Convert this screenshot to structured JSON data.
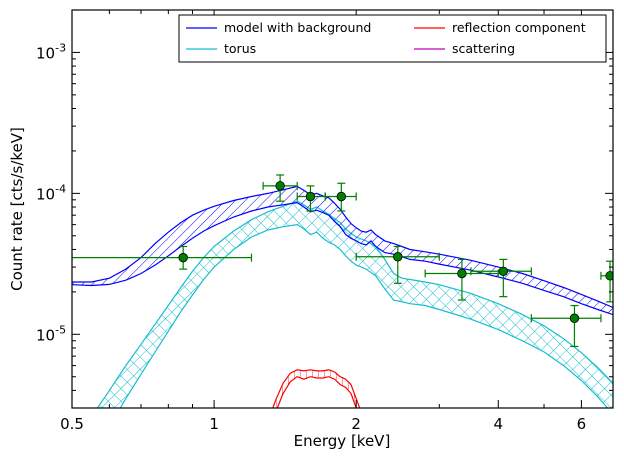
{
  "chart_data": {
    "type": "line",
    "xlabel": "Energy [keV]",
    "ylabel": "Count rate [cts/s/keV]",
    "xscale": "log",
    "yscale": "log",
    "xlim": [
      0.5,
      7.0
    ],
    "ylim": [
      3e-06,
      0.002
    ],
    "xticks": [
      {
        "value": 0.5,
        "label": "0.5"
      },
      {
        "value": 1,
        "label": "1"
      },
      {
        "value": 2,
        "label": "2"
      },
      {
        "value": 4,
        "label": "4"
      },
      {
        "value": 6,
        "label": "6"
      }
    ],
    "yticks": [
      {
        "value": 1e-05,
        "base": "10",
        "exp": "-5"
      },
      {
        "value": 0.0001,
        "base": "10",
        "exp": "-4"
      },
      {
        "value": 0.001,
        "base": "10",
        "exp": "-3"
      }
    ],
    "legend": {
      "position": "top-right",
      "columns": 2,
      "entries": [
        {
          "label": "model with background",
          "color": "#0000ff"
        },
        {
          "label": "reflection component",
          "color": "#ff0000"
        },
        {
          "label": "torus",
          "color": "#17becf"
        },
        {
          "label": "scattering",
          "color": "#bf00bf"
        }
      ]
    },
    "series": [
      {
        "name": "model with background",
        "color": "#0000ff",
        "style": "hatched-band",
        "x": [
          0.5,
          0.55,
          0.6,
          0.65,
          0.7,
          0.75,
          0.8,
          0.85,
          0.9,
          0.95,
          1.0,
          1.1,
          1.2,
          1.3,
          1.4,
          1.5,
          1.55,
          1.6,
          1.65,
          1.7,
          1.75,
          1.8,
          1.85,
          1.9,
          1.95,
          2.0,
          2.05,
          2.1,
          2.15,
          2.2,
          2.3,
          2.4,
          2.5,
          2.6,
          2.8,
          3.0,
          3.5,
          4.0,
          4.5,
          5.0,
          5.5,
          6.0,
          6.5,
          7.0
        ],
        "lower": [
          2.25e-05,
          2.22e-05,
          2.26e-05,
          2.42e-05,
          2.7e-05,
          3.1e-05,
          3.6e-05,
          4.2e-05,
          4.8e-05,
          5.4e-05,
          5.9e-05,
          6.8e-05,
          7.5e-05,
          8e-05,
          8.3e-05,
          8.6e-05,
          8e-05,
          7.4e-05,
          7.6e-05,
          7.3e-05,
          7e-05,
          6.3e-05,
          5.8e-05,
          5.1e-05,
          4.8e-05,
          4.6e-05,
          4.4e-05,
          4.3e-05,
          4.6e-05,
          4.2e-05,
          3.8e-05,
          3.7e-05,
          3.55e-05,
          3.4e-05,
          3.3e-05,
          3.15e-05,
          2.85e-05,
          2.55e-05,
          2.3e-05,
          2.05e-05,
          1.85e-05,
          1.65e-05,
          1.5e-05,
          1.38e-05
        ],
        "upper": [
          2.35e-05,
          2.35e-05,
          2.5e-05,
          2.9e-05,
          3.5e-05,
          4.4e-05,
          5.3e-05,
          6.2e-05,
          7e-05,
          7.6e-05,
          8.1e-05,
          8.9e-05,
          9.5e-05,
          0.0001,
          0.000106,
          0.000112,
          0.000105,
          9.8e-05,
          0.0001,
          9.6e-05,
          9.3e-05,
          8.5e-05,
          7.7e-05,
          6.8e-05,
          6.1e-05,
          5.7e-05,
          5.4e-05,
          5.3e-05,
          5.5e-05,
          5.1e-05,
          4.6e-05,
          4.4e-05,
          4.2e-05,
          4e-05,
          3.85e-05,
          3.7e-05,
          3.35e-05,
          3e-05,
          2.7e-05,
          2.4e-05,
          2.15e-05,
          1.92e-05,
          1.72e-05,
          1.55e-05
        ]
      },
      {
        "name": "torus",
        "color": "#17becf",
        "style": "crosshatched-band",
        "x": [
          0.55,
          0.6,
          0.65,
          0.7,
          0.75,
          0.8,
          0.85,
          0.9,
          0.95,
          1.0,
          1.1,
          1.2,
          1.3,
          1.4,
          1.5,
          1.55,
          1.6,
          1.65,
          1.7,
          1.75,
          1.8,
          1.85,
          1.9,
          1.95,
          2.0,
          2.1,
          2.2,
          2.3,
          2.4,
          2.5,
          2.6,
          2.8,
          3.0,
          3.5,
          4.0,
          4.5,
          5.0,
          5.5,
          6.0,
          6.5,
          7.0
        ],
        "lower": [
          1.3e-06,
          2.2e-06,
          3.5e-06,
          5.2e-06,
          7.5e-06,
          1.05e-05,
          1.45e-05,
          1.9e-05,
          2.45e-05,
          3e-05,
          4e-05,
          4.9e-05,
          5.5e-05,
          5.8e-05,
          6e-05,
          5.6e-05,
          5.1e-05,
          5.3e-05,
          4.8e-05,
          4.5e-05,
          4.3e-05,
          4e-05,
          3.6e-05,
          3.3e-05,
          3.1e-05,
          2.9e-05,
          2.6e-05,
          2.1e-05,
          1.75e-05,
          1.7e-05,
          1.65e-05,
          1.6e-05,
          1.5e-05,
          1.28e-05,
          1.08e-05,
          9e-06,
          7.5e-06,
          6e-06,
          4.7e-06,
          3.6e-06,
          2.7e-06
        ],
        "upper": [
          2.6e-06,
          4e-06,
          6e-06,
          8.5e-06,
          1.18e-05,
          1.6e-05,
          2.15e-05,
          2.8e-05,
          3.5e-05,
          4.2e-05,
          5.4e-05,
          6.5e-05,
          7.4e-05,
          8.1e-05,
          8.8e-05,
          8.3e-05,
          7.7e-05,
          8e-05,
          7.5e-05,
          7.1e-05,
          6.6e-05,
          6.2e-05,
          5.6e-05,
          5.2e-05,
          4.9e-05,
          4.6e-05,
          4.2e-05,
          3.4e-05,
          2.7e-05,
          2.5e-05,
          2.45e-05,
          2.35e-05,
          2.25e-05,
          1.95e-05,
          1.65e-05,
          1.38e-05,
          1.15e-05,
          9.3e-06,
          7.4e-06,
          5.8e-06,
          4.5e-06
        ]
      },
      {
        "name": "reflection component",
        "color": "#ff0000",
        "style": "band",
        "x": [
          1.3,
          1.35,
          1.4,
          1.45,
          1.5,
          1.55,
          1.6,
          1.65,
          1.7,
          1.75,
          1.8,
          1.85,
          1.9,
          1.95,
          2.0,
          2.05,
          2.1
        ],
        "lower": [
          2e-06,
          2.8e-06,
          3.8e-06,
          4.6e-06,
          5e-06,
          4.8e-06,
          5e-06,
          4.9e-06,
          4.9e-06,
          5e-06,
          4.8e-06,
          4.4e-06,
          4.2e-06,
          3.8e-06,
          3e-06,
          2.4e-06,
          1.8e-06
        ],
        "upper": [
          2.4e-06,
          3.4e-06,
          4.5e-06,
          5.3e-06,
          5.6e-06,
          5.5e-06,
          5.6e-06,
          5.5e-06,
          5.5e-06,
          5.6e-06,
          5.4e-06,
          5e-06,
          4.8e-06,
          4.4e-06,
          3.5e-06,
          2.8e-06,
          2.2e-06
        ]
      }
    ],
    "data_points": {
      "color": "#008000",
      "points": [
        {
          "x": 0.86,
          "y": 3.5e-05,
          "xerr": [
            0.5,
            1.2
          ],
          "yerr": [
            2.9e-05,
            4.2e-05
          ]
        },
        {
          "x": 1.38,
          "y": 0.000113,
          "xerr": [
            1.27,
            1.5
          ],
          "yerr": [
            8.8e-05,
            0.000135
          ]
        },
        {
          "x": 1.6,
          "y": 9.5e-05,
          "xerr": [
            1.5,
            1.72
          ],
          "yerr": [
            7.5e-05,
            0.000113
          ]
        },
        {
          "x": 1.86,
          "y": 9.5e-05,
          "xerr": [
            1.72,
            2.0
          ],
          "yerr": [
            7.5e-05,
            0.000118
          ]
        },
        {
          "x": 2.45,
          "y": 3.55e-05,
          "xerr": [
            2.0,
            3.0
          ],
          "yerr": [
            2.3e-05,
            4.2e-05
          ]
        },
        {
          "x": 3.35,
          "y": 2.7e-05,
          "xerr": [
            2.8,
            4.0
          ],
          "yerr": [
            1.75e-05,
            3.4e-05
          ]
        },
        {
          "x": 4.1,
          "y": 2.8e-05,
          "xerr": [
            3.5,
            4.7
          ],
          "yerr": [
            1.85e-05,
            3.4e-05
          ]
        },
        {
          "x": 5.8,
          "y": 1.3e-05,
          "xerr": [
            4.7,
            6.6
          ],
          "yerr": [
            8.2e-06,
            1.6e-05
          ]
        },
        {
          "x": 6.9,
          "y": 2.6e-05,
          "xerr": [
            6.6,
            7.0
          ],
          "yerr": [
            1.7e-05,
            3.3e-05
          ]
        }
      ]
    }
  }
}
